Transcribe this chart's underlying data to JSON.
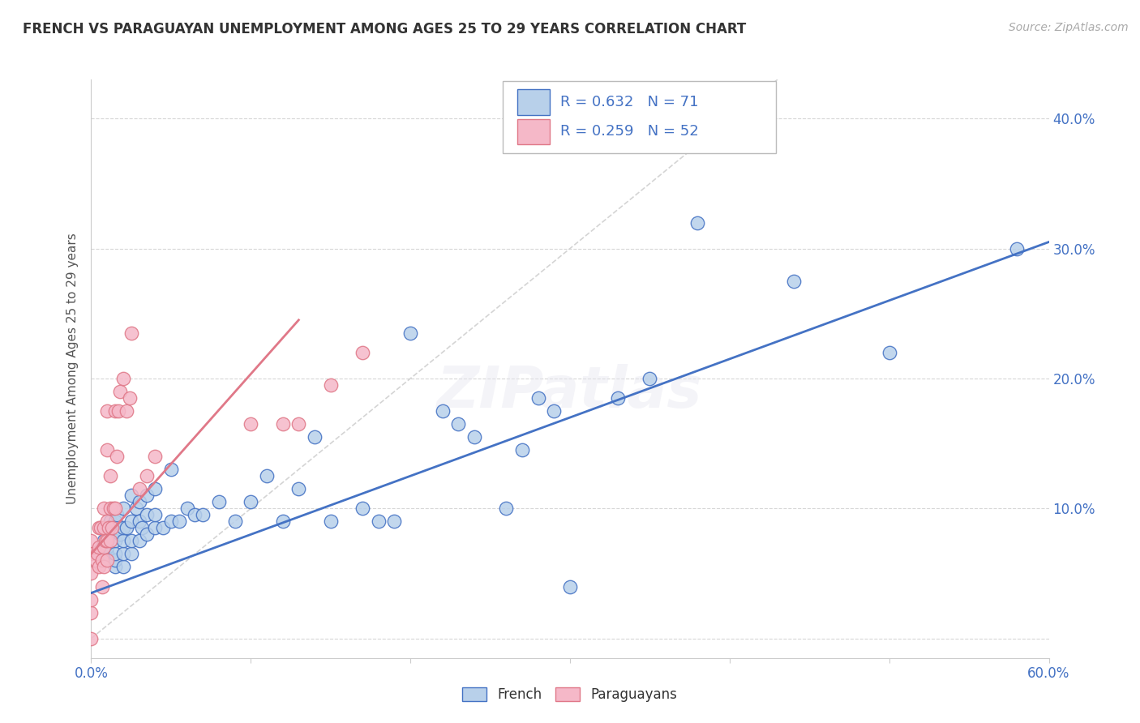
{
  "title": "FRENCH VS PARAGUAYAN UNEMPLOYMENT AMONG AGES 25 TO 29 YEARS CORRELATION CHART",
  "source": "Source: ZipAtlas.com",
  "ylabel": "Unemployment Among Ages 25 to 29 years",
  "xlim": [
    0.0,
    0.6
  ],
  "ylim": [
    -0.015,
    0.43
  ],
  "xticks": [
    0.0,
    0.1,
    0.2,
    0.3,
    0.4,
    0.5,
    0.6
  ],
  "xticklabels": [
    "0.0%",
    "",
    "",
    "",
    "",
    "",
    "60.0%"
  ],
  "yticks": [
    0.0,
    0.1,
    0.2,
    0.3,
    0.4
  ],
  "yticklabels_right": [
    "",
    "10.0%",
    "20.0%",
    "30.0%",
    "40.0%"
  ],
  "french_face_color": "#b8d0ea",
  "french_edge_color": "#4472c4",
  "paraguayan_face_color": "#f5b8c8",
  "paraguayan_edge_color": "#e07888",
  "trendline_french_color": "#4472c4",
  "trendline_paraguayan_color": "#e07888",
  "refline_color": "#d0d0d0",
  "watermark": "ZIPatlas",
  "background_color": "#ffffff",
  "tick_color": "#4472c4",
  "title_color": "#333333",
  "french_trendline_x": [
    0.0,
    0.6
  ],
  "french_trendline_y": [
    0.035,
    0.305
  ],
  "paraguayan_trendline_x": [
    0.0,
    0.13
  ],
  "paraguayan_trendline_y": [
    0.065,
    0.245
  ],
  "refline_x": [
    0.0,
    0.43
  ],
  "refline_y": [
    0.0,
    0.43
  ],
  "french_x": [
    0.005,
    0.007,
    0.008,
    0.009,
    0.01,
    0.01,
    0.01,
    0.012,
    0.015,
    0.015,
    0.015,
    0.015,
    0.015,
    0.016,
    0.018,
    0.02,
    0.02,
    0.02,
    0.02,
    0.02,
    0.022,
    0.025,
    0.025,
    0.025,
    0.025,
    0.028,
    0.03,
    0.03,
    0.03,
    0.032,
    0.035,
    0.035,
    0.035,
    0.04,
    0.04,
    0.04,
    0.045,
    0.05,
    0.05,
    0.055,
    0.06,
    0.065,
    0.07,
    0.08,
    0.09,
    0.1,
    0.11,
    0.12,
    0.13,
    0.14,
    0.15,
    0.17,
    0.18,
    0.19,
    0.2,
    0.22,
    0.23,
    0.24,
    0.26,
    0.27,
    0.28,
    0.29,
    0.3,
    0.33,
    0.35,
    0.38,
    0.4,
    0.44,
    0.5,
    0.58
  ],
  "french_y": [
    0.065,
    0.07,
    0.075,
    0.065,
    0.065,
    0.07,
    0.085,
    0.09,
    0.055,
    0.06,
    0.065,
    0.075,
    0.09,
    0.095,
    0.08,
    0.055,
    0.065,
    0.075,
    0.085,
    0.1,
    0.085,
    0.065,
    0.075,
    0.09,
    0.11,
    0.1,
    0.075,
    0.09,
    0.105,
    0.085,
    0.08,
    0.095,
    0.11,
    0.085,
    0.095,
    0.115,
    0.085,
    0.09,
    0.13,
    0.09,
    0.1,
    0.095,
    0.095,
    0.105,
    0.09,
    0.105,
    0.125,
    0.09,
    0.115,
    0.155,
    0.09,
    0.1,
    0.09,
    0.09,
    0.235,
    0.175,
    0.165,
    0.155,
    0.1,
    0.145,
    0.185,
    0.175,
    0.04,
    0.185,
    0.2,
    0.32,
    0.395,
    0.275,
    0.22,
    0.3
  ],
  "paraguayan_x": [
    0.0,
    0.0,
    0.0,
    0.0,
    0.0,
    0.0,
    0.003,
    0.004,
    0.005,
    0.005,
    0.005,
    0.006,
    0.007,
    0.007,
    0.008,
    0.008,
    0.008,
    0.008,
    0.009,
    0.01,
    0.01,
    0.01,
    0.01,
    0.01,
    0.011,
    0.012,
    0.012,
    0.012,
    0.013,
    0.014,
    0.015,
    0.015,
    0.016,
    0.017,
    0.018,
    0.02,
    0.022,
    0.024,
    0.025,
    0.03,
    0.035,
    0.04,
    0.1,
    0.12,
    0.13,
    0.15,
    0.17
  ],
  "paraguayan_y": [
    0.0,
    0.02,
    0.03,
    0.05,
    0.065,
    0.075,
    0.06,
    0.065,
    0.055,
    0.07,
    0.085,
    0.085,
    0.04,
    0.06,
    0.055,
    0.07,
    0.085,
    0.1,
    0.075,
    0.06,
    0.075,
    0.09,
    0.145,
    0.175,
    0.085,
    0.075,
    0.1,
    0.125,
    0.085,
    0.1,
    0.1,
    0.175,
    0.14,
    0.175,
    0.19,
    0.2,
    0.175,
    0.185,
    0.235,
    0.115,
    0.125,
    0.14,
    0.165,
    0.165,
    0.165,
    0.195,
    0.22
  ]
}
